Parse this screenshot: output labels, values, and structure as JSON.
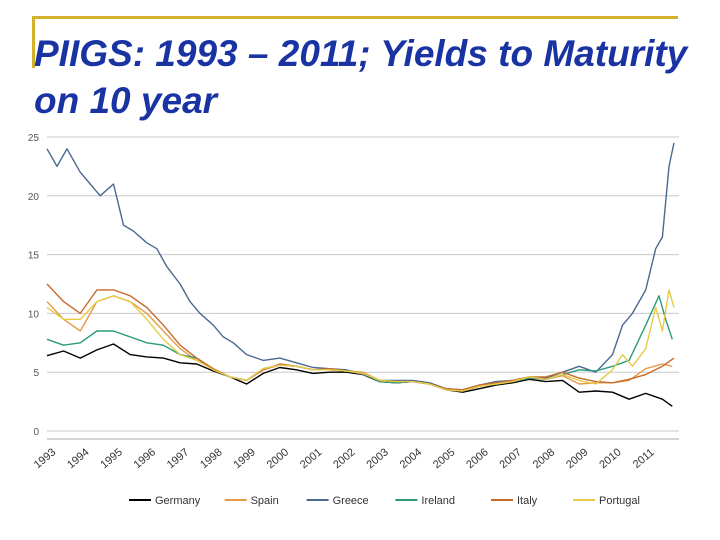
{
  "slide": {
    "title": "PIIGS:  1993 – 2011; Yields to Maturity on 10 year"
  },
  "colors": {
    "accent_rule": "#d4b12a",
    "title": "#1a33a3"
  },
  "chart_data": {
    "type": "line",
    "title": "",
    "xlabel": "",
    "ylabel": "",
    "ylim": [
      0,
      25
    ],
    "xlim": [
      1993,
      2012
    ],
    "y_ticks": [
      "0",
      "5",
      "10",
      "15",
      "20",
      "25"
    ],
    "x_ticks": [
      "1993",
      "1994",
      "1995",
      "1996",
      "1997",
      "1998",
      "1999",
      "2000",
      "2001",
      "2002",
      "2003",
      "2004",
      "2005",
      "2006",
      "2007",
      "2008",
      "2009",
      "2010",
      "2011"
    ],
    "grid": "horizontal",
    "legend_position": "bottom",
    "series": [
      {
        "name": "Germany",
        "color": "#000000",
        "points": [
          [
            1993,
            6.4
          ],
          [
            1993.5,
            6.8
          ],
          [
            1994,
            6.2
          ],
          [
            1994.5,
            6.9
          ],
          [
            1995,
            7.4
          ],
          [
            1995.5,
            6.5
          ],
          [
            1996,
            6.3
          ],
          [
            1996.5,
            6.2
          ],
          [
            1997,
            5.8
          ],
          [
            1997.5,
            5.7
          ],
          [
            1998,
            5.1
          ],
          [
            1998.5,
            4.6
          ],
          [
            1999,
            4.0
          ],
          [
            1999.5,
            4.9
          ],
          [
            2000,
            5.4
          ],
          [
            2000.5,
            5.2
          ],
          [
            2001,
            4.9
          ],
          [
            2001.5,
            5.0
          ],
          [
            2002,
            5.0
          ],
          [
            2002.5,
            4.8
          ],
          [
            2003,
            4.2
          ],
          [
            2003.5,
            4.1
          ],
          [
            2004,
            4.2
          ],
          [
            2004.5,
            4.0
          ],
          [
            2005,
            3.5
          ],
          [
            2005.5,
            3.3
          ],
          [
            2006,
            3.6
          ],
          [
            2006.5,
            3.9
          ],
          [
            2007,
            4.1
          ],
          [
            2007.5,
            4.4
          ],
          [
            2008,
            4.2
          ],
          [
            2008.5,
            4.3
          ],
          [
            2009,
            3.3
          ],
          [
            2009.5,
            3.4
          ],
          [
            2010,
            3.3
          ],
          [
            2010.5,
            2.7
          ],
          [
            2011,
            3.2
          ],
          [
            2011.5,
            2.7
          ],
          [
            2011.8,
            2.1
          ]
        ]
      },
      {
        "name": "Spain",
        "color": "#e69a49",
        "points": [
          [
            1993,
            11.0
          ],
          [
            1993.5,
            9.5
          ],
          [
            1994,
            8.5
          ],
          [
            1994.5,
            11.0
          ],
          [
            1995,
            11.5
          ],
          [
            1995.5,
            11.0
          ],
          [
            1996,
            10.0
          ],
          [
            1996.5,
            8.5
          ],
          [
            1997,
            7.0
          ],
          [
            1997.5,
            6.0
          ],
          [
            1998,
            5.3
          ],
          [
            1998.5,
            4.6
          ],
          [
            1999,
            4.3
          ],
          [
            1999.5,
            5.2
          ],
          [
            2000,
            5.6
          ],
          [
            2000.5,
            5.5
          ],
          [
            2001,
            5.2
          ],
          [
            2001.5,
            5.2
          ],
          [
            2002,
            5.1
          ],
          [
            2002.5,
            5.0
          ],
          [
            2003,
            4.3
          ],
          [
            2003.5,
            4.2
          ],
          [
            2004,
            4.2
          ],
          [
            2004.5,
            4.0
          ],
          [
            2005,
            3.5
          ],
          [
            2005.5,
            3.4
          ],
          [
            2006,
            3.8
          ],
          [
            2006.5,
            4.0
          ],
          [
            2007,
            4.2
          ],
          [
            2007.5,
            4.6
          ],
          [
            2008,
            4.4
          ],
          [
            2008.5,
            4.7
          ],
          [
            2009,
            4.0
          ],
          [
            2009.5,
            4.1
          ],
          [
            2010,
            4.1
          ],
          [
            2010.5,
            4.3
          ],
          [
            2011,
            5.3
          ],
          [
            2011.5,
            5.7
          ],
          [
            2011.8,
            5.5
          ]
        ]
      },
      {
        "name": "Greece",
        "color": "#4a6890",
        "points": [
          [
            1993,
            24.0
          ],
          [
            1993.3,
            22.5
          ],
          [
            1993.6,
            24.0
          ],
          [
            1994,
            22.0
          ],
          [
            1994.3,
            21.0
          ],
          [
            1994.6,
            20.0
          ],
          [
            1995,
            21.0
          ],
          [
            1995.3,
            17.5
          ],
          [
            1995.6,
            17.0
          ],
          [
            1996,
            16.0
          ],
          [
            1996.3,
            15.5
          ],
          [
            1996.6,
            14.0
          ],
          [
            1997,
            12.5
          ],
          [
            1997.3,
            11.0
          ],
          [
            1997.6,
            10.0
          ],
          [
            1998,
            9.0
          ],
          [
            1998.3,
            8.0
          ],
          [
            1998.6,
            7.5
          ],
          [
            1999,
            6.5
          ],
          [
            1999.5,
            6.0
          ],
          [
            2000,
            6.2
          ],
          [
            2000.5,
            5.8
          ],
          [
            2001,
            5.4
          ],
          [
            2001.5,
            5.3
          ],
          [
            2002,
            5.2
          ],
          [
            2002.5,
            4.8
          ],
          [
            2003,
            4.3
          ],
          [
            2003.5,
            4.3
          ],
          [
            2004,
            4.3
          ],
          [
            2004.5,
            4.1
          ],
          [
            2005,
            3.6
          ],
          [
            2005.5,
            3.5
          ],
          [
            2006,
            3.9
          ],
          [
            2006.5,
            4.2
          ],
          [
            2007,
            4.3
          ],
          [
            2007.5,
            4.6
          ],
          [
            2008,
            4.5
          ],
          [
            2008.5,
            5.0
          ],
          [
            2009,
            5.5
          ],
          [
            2009.5,
            5.0
          ],
          [
            2010,
            6.5
          ],
          [
            2010.3,
            9.0
          ],
          [
            2010.6,
            10.0
          ],
          [
            2010.9,
            11.5
          ],
          [
            2011,
            12.0
          ],
          [
            2011.3,
            15.5
          ],
          [
            2011.5,
            16.5
          ],
          [
            2011.7,
            22.5
          ],
          [
            2011.85,
            24.5
          ]
        ]
      },
      {
        "name": "Ireland",
        "color": "#2a9a7a",
        "points": [
          [
            1993,
            7.8
          ],
          [
            1993.5,
            7.3
          ],
          [
            1994,
            7.5
          ],
          [
            1994.5,
            8.5
          ],
          [
            1995,
            8.5
          ],
          [
            1995.5,
            8.0
          ],
          [
            1996,
            7.5
          ],
          [
            1996.5,
            7.3
          ],
          [
            1997,
            6.5
          ],
          [
            1997.5,
            6.2
          ],
          [
            1998,
            5.2
          ],
          [
            1998.5,
            4.6
          ],
          [
            1999,
            4.3
          ],
          [
            1999.5,
            5.3
          ],
          [
            2000,
            5.6
          ],
          [
            2000.5,
            5.5
          ],
          [
            2001,
            5.2
          ],
          [
            2001.5,
            5.2
          ],
          [
            2002,
            5.1
          ],
          [
            2002.5,
            4.9
          ],
          [
            2003,
            4.2
          ],
          [
            2003.5,
            4.1
          ],
          [
            2004,
            4.2
          ],
          [
            2004.5,
            4.0
          ],
          [
            2005,
            3.5
          ],
          [
            2005.5,
            3.4
          ],
          [
            2006,
            3.8
          ],
          [
            2006.5,
            4.0
          ],
          [
            2007,
            4.2
          ],
          [
            2007.5,
            4.5
          ],
          [
            2008,
            4.4
          ],
          [
            2008.5,
            4.8
          ],
          [
            2009,
            5.2
          ],
          [
            2009.5,
            5.1
          ],
          [
            2010,
            5.5
          ],
          [
            2010.5,
            6.0
          ],
          [
            2011,
            9.0
          ],
          [
            2011.4,
            11.5
          ],
          [
            2011.6,
            9.5
          ],
          [
            2011.8,
            7.8
          ]
        ]
      },
      {
        "name": "Italy",
        "color": "#c86a2a",
        "points": [
          [
            1993,
            12.5
          ],
          [
            1993.5,
            11.0
          ],
          [
            1994,
            10.0
          ],
          [
            1994.5,
            12.0
          ],
          [
            1995,
            12.0
          ],
          [
            1995.5,
            11.5
          ],
          [
            1996,
            10.5
          ],
          [
            1996.5,
            9.0
          ],
          [
            1997,
            7.3
          ],
          [
            1997.5,
            6.2
          ],
          [
            1998,
            5.3
          ],
          [
            1998.5,
            4.6
          ],
          [
            1999,
            4.3
          ],
          [
            1999.5,
            5.2
          ],
          [
            2000,
            5.7
          ],
          [
            2000.5,
            5.5
          ],
          [
            2001,
            5.2
          ],
          [
            2001.5,
            5.3
          ],
          [
            2002,
            5.1
          ],
          [
            2002.5,
            4.9
          ],
          [
            2003,
            4.3
          ],
          [
            2003.5,
            4.2
          ],
          [
            2004,
            4.2
          ],
          [
            2004.5,
            4.0
          ],
          [
            2005,
            3.6
          ],
          [
            2005.5,
            3.5
          ],
          [
            2006,
            3.9
          ],
          [
            2006.5,
            4.1
          ],
          [
            2007,
            4.3
          ],
          [
            2007.5,
            4.6
          ],
          [
            2008,
            4.6
          ],
          [
            2008.5,
            5.0
          ],
          [
            2009,
            4.5
          ],
          [
            2009.5,
            4.2
          ],
          [
            2010,
            4.1
          ],
          [
            2010.5,
            4.4
          ],
          [
            2011,
            4.8
          ],
          [
            2011.5,
            5.5
          ],
          [
            2011.85,
            6.2
          ]
        ]
      },
      {
        "name": "Portugal",
        "color": "#e6cb47",
        "points": [
          [
            1993,
            10.5
          ],
          [
            1993.5,
            9.5
          ],
          [
            1994,
            9.5
          ],
          [
            1994.5,
            11.0
          ],
          [
            1995,
            11.5
          ],
          [
            1995.5,
            11.0
          ],
          [
            1996,
            9.5
          ],
          [
            1996.5,
            7.8
          ],
          [
            1997,
            6.5
          ],
          [
            1997.5,
            6.0
          ],
          [
            1998,
            5.2
          ],
          [
            1998.5,
            4.6
          ],
          [
            1999,
            4.3
          ],
          [
            1999.5,
            5.3
          ],
          [
            2000,
            5.6
          ],
          [
            2000.5,
            5.5
          ],
          [
            2001,
            5.2
          ],
          [
            2001.5,
            5.2
          ],
          [
            2002,
            5.1
          ],
          [
            2002.5,
            4.9
          ],
          [
            2003,
            4.3
          ],
          [
            2003.5,
            4.2
          ],
          [
            2004,
            4.2
          ],
          [
            2004.5,
            4.0
          ],
          [
            2005,
            3.5
          ],
          [
            2005.5,
            3.4
          ],
          [
            2006,
            3.8
          ],
          [
            2006.5,
            4.0
          ],
          [
            2007,
            4.2
          ],
          [
            2007.5,
            4.6
          ],
          [
            2008,
            4.4
          ],
          [
            2008.5,
            4.8
          ],
          [
            2009,
            4.3
          ],
          [
            2009.5,
            4.0
          ],
          [
            2010,
            5.2
          ],
          [
            2010.3,
            6.5
          ],
          [
            2010.6,
            5.5
          ],
          [
            2011,
            7.0
          ],
          [
            2011.3,
            10.5
          ],
          [
            2011.5,
            8.5
          ],
          [
            2011.7,
            12.0
          ],
          [
            2011.85,
            10.5
          ]
        ]
      }
    ]
  }
}
